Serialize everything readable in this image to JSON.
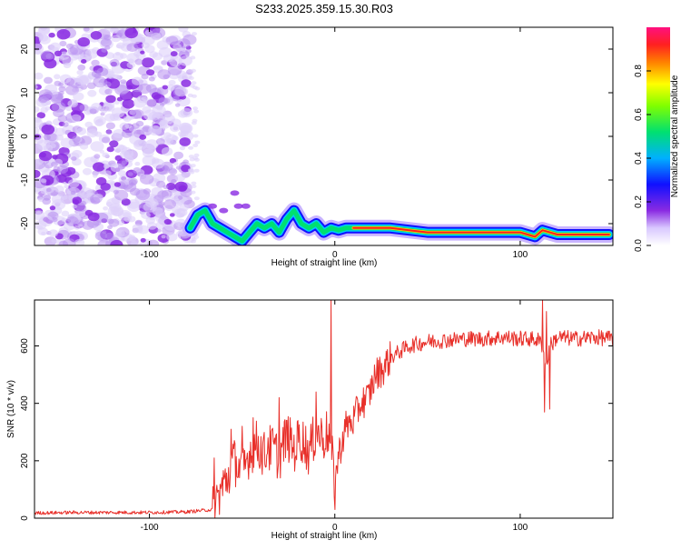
{
  "title": "S233.2025.359.15.30.R03",
  "colors": {
    "snr_line": "#e8302a",
    "frame": "#000000",
    "speckle": "#8a2be2",
    "track_outer": "#1010ff",
    "track_mid": "#00e070",
    "track_core": "#ff2020"
  },
  "chart_data": [
    {
      "type": "heatmap",
      "name": "spectrogram",
      "xlabel": "Height of straight line (km)",
      "ylabel": "Frequency (Hz)",
      "xlim": [
        -162,
        150
      ],
      "ylim": [
        -25,
        25
      ],
      "xticks": [
        -100,
        0,
        100
      ],
      "yticks": [
        -20,
        -10,
        0,
        10,
        20
      ],
      "xtick_labels": [
        "-100",
        "0",
        "100"
      ],
      "ytick_labels": [
        "-20",
        "-10",
        "0",
        "10",
        "20"
      ],
      "noise_region_x": [
        -162,
        -78
      ],
      "track": {
        "x": [
          -78,
          -74,
          -70,
          -66,
          -62,
          -58,
          -54,
          -50,
          -46,
          -42,
          -38,
          -34,
          -30,
          -26,
          -22,
          -18,
          -14,
          -10,
          -6,
          -2,
          2,
          6,
          10,
          20,
          30,
          40,
          50,
          60,
          70,
          80,
          90,
          100,
          104,
          108,
          112,
          116,
          120,
          130,
          140,
          148
        ],
        "y": [
          -21,
          -18,
          -17,
          -20,
          -21,
          -22,
          -23,
          -24,
          -22,
          -20,
          -21,
          -20,
          -22,
          -19,
          -17,
          -20,
          -21,
          -20,
          -22,
          -21,
          -21.5,
          -21,
          -21,
          -21,
          -21,
          -21.5,
          -22,
          -22,
          -22,
          -22,
          -22,
          -22,
          -22.5,
          -23,
          -21.5,
          -22,
          -22.5,
          -22.5,
          -22.5,
          -22.5
        ]
      },
      "scatter_blobs": {
        "x": [
          -54,
          -52,
          -48,
          -60,
          -66
        ],
        "y": [
          -13,
          -16,
          -16,
          -17,
          -16
        ]
      },
      "colorbar": {
        "label": "Normalized spectral amplitude",
        "ticks": [
          0.0,
          0.2,
          0.4,
          0.6,
          0.8
        ],
        "tick_labels": [
          "0.0",
          "0.2",
          "0.4",
          "0.6",
          "0.8"
        ],
        "range": [
          0,
          1
        ]
      }
    },
    {
      "type": "line",
      "name": "snr",
      "xlabel": "Height of straight line (km)",
      "ylabel": "SNR (10 * v/v)",
      "xlim": [
        -162,
        150
      ],
      "ylim": [
        0,
        760
      ],
      "xticks": [
        -100,
        0,
        100
      ],
      "yticks": [
        0,
        200,
        400,
        600
      ],
      "xtick_labels": [
        "-100",
        "0",
        "100"
      ],
      "ytick_labels": [
        "0",
        "200",
        "400",
        "600"
      ],
      "series": [
        {
          "name": "SNR",
          "baseline": {
            "x": [
              -162,
              -140,
              -120,
              -100,
              -80,
              -66,
              -62,
              -58,
              -54,
              -50,
              -46,
              -42,
              -38,
              -34,
              -30,
              -26,
              -22,
              -18,
              -14,
              -10,
              -6,
              -4,
              -2,
              0,
              2,
              6,
              10,
              14,
              18,
              22,
              26,
              30,
              40,
              50,
              60,
              70,
              80,
              90,
              100,
              105,
              110,
              112,
              114,
              116,
              120,
              130,
              140,
              150
            ],
            "y": [
              18,
              20,
              20,
              20,
              22,
              30,
              90,
              140,
              200,
              150,
              230,
              260,
              220,
              250,
              210,
              290,
              240,
              280,
              230,
              300,
              280,
              300,
              250,
              120,
              220,
              320,
              340,
              400,
              420,
              500,
              520,
              560,
              600,
              615,
              620,
              625,
              625,
              630,
              625,
              625,
              620,
              600,
              520,
              600,
              630,
              625,
              630,
              625
            ]
          },
          "spikes": {
            "x": [
              -65,
              -56,
              -54,
              -50,
              -44,
              -36,
              -30,
              -20,
              -10,
              -2,
              0,
              112,
              113,
              114,
              116
            ],
            "y": [
              210,
              310,
              260,
              320,
              350,
              280,
              420,
              340,
              440,
              760,
              30,
              760,
              370,
              720,
              380
            ]
          }
        }
      ]
    }
  ]
}
